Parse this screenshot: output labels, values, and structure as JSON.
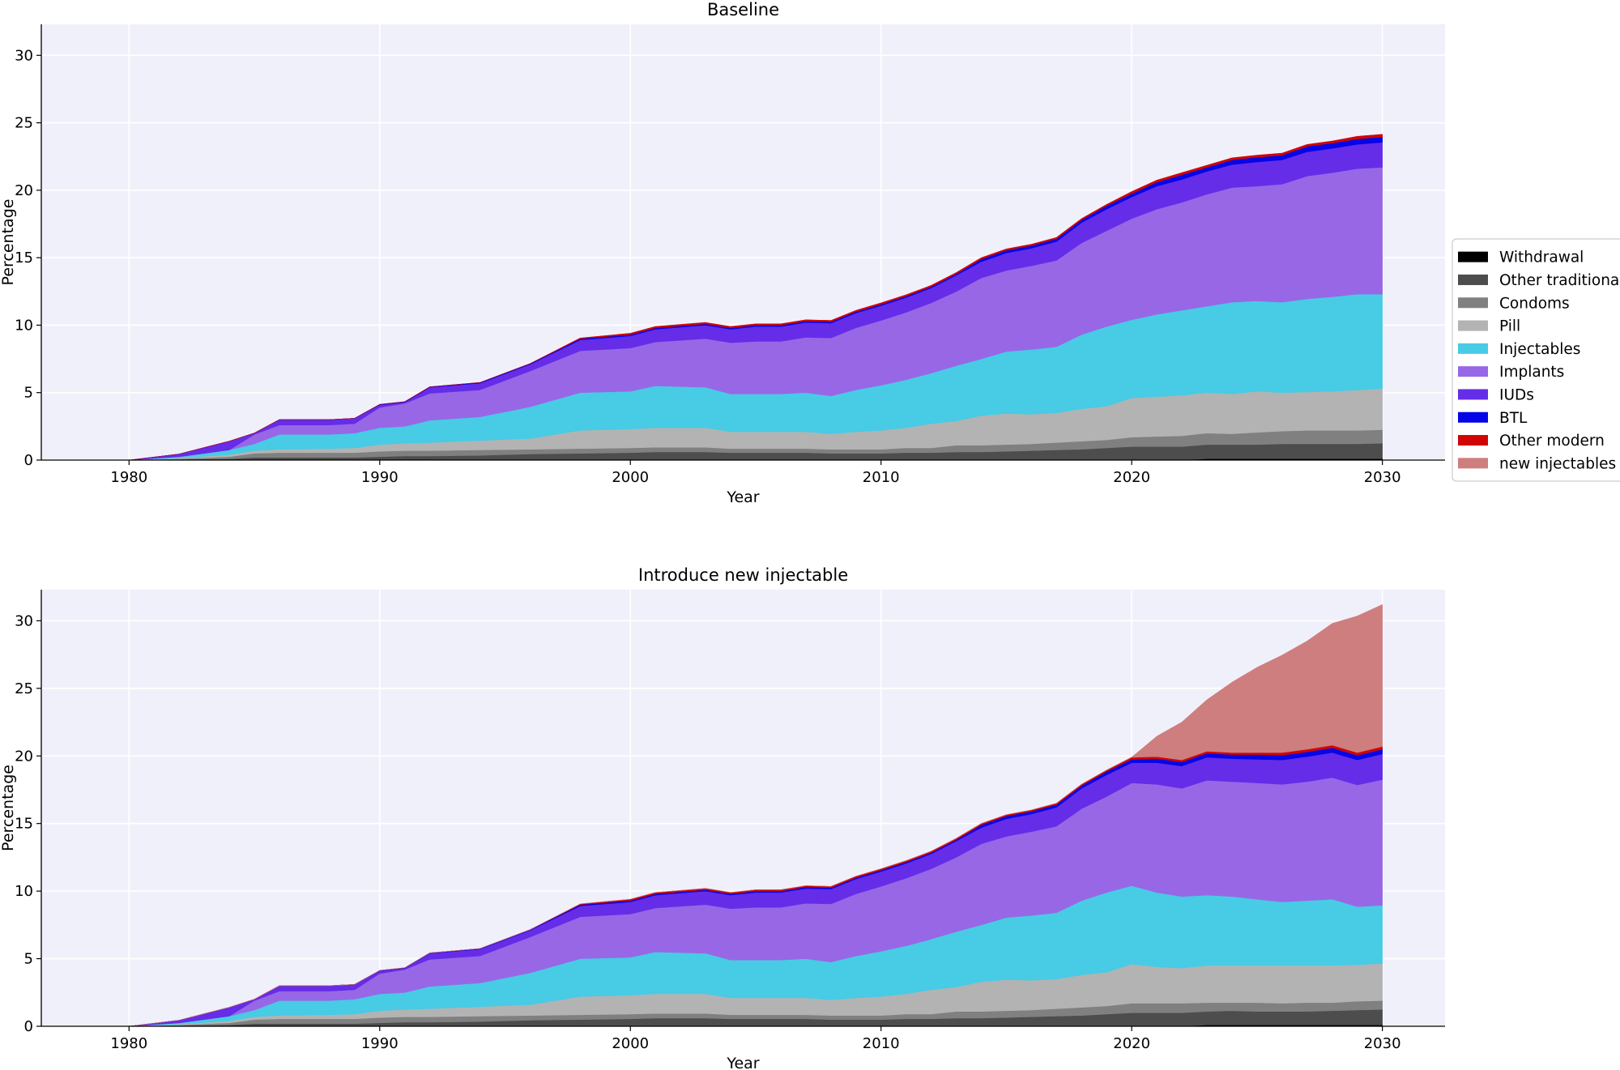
{
  "legend": {
    "entries": [
      {
        "label": "Withdrawal",
        "color": "#000000"
      },
      {
        "label": "Other traditional",
        "color": "#4d4d4d"
      },
      {
        "label": "Condoms",
        "color": "#808080"
      },
      {
        "label": "Pill",
        "color": "#b3b3b3"
      },
      {
        "label": "Injectables",
        "color": "#48cbe4"
      },
      {
        "label": "Implants",
        "color": "#9867e6"
      },
      {
        "label": "IUDs",
        "color": "#652de8"
      },
      {
        "label": "BTL",
        "color": "#0505e8"
      },
      {
        "label": "Other modern",
        "color": "#d10505"
      },
      {
        "label": "new injectables",
        "color": "#ce7e7e"
      }
    ]
  },
  "chart_data": [
    {
      "type": "area",
      "stacked": true,
      "title": "Baseline",
      "xlabel": "Year",
      "ylabel": "Percentage",
      "xlim": [
        1976.5,
        2032.5
      ],
      "ylim": [
        0,
        32.3
      ],
      "xticks": [
        "1980",
        "1990",
        "2000",
        "2010",
        "2020",
        "2030"
      ],
      "yticks": [
        "0",
        "5",
        "10",
        "15",
        "20",
        "25",
        "30"
      ],
      "grid": true,
      "x": [
        1980,
        1982,
        1984,
        1985,
        1986,
        1988,
        1989,
        1990,
        1991,
        1992,
        1994,
        1996,
        1998,
        2000,
        2001,
        2003,
        2004,
        2005,
        2006,
        2007,
        2008,
        2009,
        2010,
        2011,
        2012,
        2013,
        2014,
        2015,
        2016,
        2017,
        2018,
        2019,
        2020,
        2021,
        2022,
        2023,
        2024,
        2025,
        2026,
        2027,
        2028,
        2029,
        2030
      ],
      "series": [
        {
          "name": "Withdrawal",
          "values": [
            0,
            0,
            0,
            0,
            0,
            0,
            0,
            0,
            0,
            0,
            0,
            0,
            0,
            0,
            0,
            0,
            0,
            0,
            0,
            0,
            0,
            0,
            0,
            0,
            0,
            0,
            0,
            0,
            0,
            0,
            0,
            0,
            0,
            0,
            0,
            0.1,
            0.1,
            0.1,
            0.1,
            0.1,
            0.1,
            0.1,
            0.1
          ]
        },
        {
          "name": "Other traditional",
          "values": [
            0,
            0.05,
            0.1,
            0.2,
            0.2,
            0.2,
            0.2,
            0.25,
            0.3,
            0.3,
            0.35,
            0.45,
            0.5,
            0.55,
            0.6,
            0.6,
            0.55,
            0.55,
            0.55,
            0.55,
            0.5,
            0.5,
            0.5,
            0.55,
            0.55,
            0.6,
            0.6,
            0.65,
            0.7,
            0.75,
            0.8,
            0.9,
            1,
            1,
            1,
            1.05,
            1.05,
            1.05,
            1.1,
            1.1,
            1.1,
            1.1,
            1.15
          ]
        },
        {
          "name": "Condoms",
          "values": [
            0,
            0.05,
            0.15,
            0.3,
            0.35,
            0.35,
            0.35,
            0.4,
            0.4,
            0.4,
            0.4,
            0.35,
            0.35,
            0.35,
            0.35,
            0.35,
            0.3,
            0.3,
            0.3,
            0.3,
            0.3,
            0.3,
            0.3,
            0.35,
            0.35,
            0.5,
            0.5,
            0.5,
            0.5,
            0.55,
            0.6,
            0.6,
            0.7,
            0.75,
            0.8,
            0.85,
            0.8,
            0.9,
            0.95,
            1,
            1,
            1,
            1
          ]
        },
        {
          "name": "Pill",
          "values": [
            0,
            0.05,
            0.15,
            0.2,
            0.25,
            0.3,
            0.35,
            0.5,
            0.55,
            0.6,
            0.7,
            0.8,
            1.35,
            1.4,
            1.45,
            1.45,
            1.25,
            1.25,
            1.25,
            1.25,
            1.15,
            1.3,
            1.4,
            1.5,
            1.8,
            1.8,
            2.2,
            2.3,
            2.2,
            2.2,
            2.4,
            2.5,
            2.9,
            2.95,
            3,
            3,
            2.95,
            3.05,
            2.85,
            2.85,
            2.9,
            3,
            3.05
          ]
        },
        {
          "name": "Injectables",
          "values": [
            0,
            0.1,
            0.35,
            0.5,
            1.1,
            1.05,
            1.1,
            1.25,
            1.25,
            1.65,
            1.75,
            2.35,
            2.8,
            2.8,
            3.1,
            3,
            2.8,
            2.8,
            2.8,
            2.9,
            2.8,
            3.1,
            3.35,
            3.55,
            3.75,
            4.1,
            4.2,
            4.6,
            4.8,
            4.9,
            5.5,
            5.9,
            5.8,
            6.1,
            6.3,
            6.4,
            6.8,
            6.7,
            6.7,
            6.9,
            7,
            7.1,
            7
          ]
        },
        {
          "name": "Implants",
          "values": [
            0,
            0,
            0,
            0.7,
            0.7,
            0.7,
            0.7,
            1.5,
            1.7,
            2,
            2,
            2.65,
            3.1,
            3.2,
            3.25,
            3.6,
            3.8,
            3.9,
            3.9,
            4.1,
            4.3,
            4.6,
            4.8,
            5,
            5.2,
            5.5,
            6,
            6,
            6.2,
            6.4,
            6.8,
            7.1,
            7.5,
            7.8,
            8,
            8.3,
            8.5,
            8.5,
            8.75,
            9.1,
            9.2,
            9.3,
            9.4
          ]
        },
        {
          "name": "IUDs",
          "values": [
            0,
            0.2,
            0.65,
            0.1,
            0.4,
            0.4,
            0.4,
            0.2,
            0.1,
            0.45,
            0.5,
            0.5,
            0.8,
            0.9,
            0.95,
            1,
            1,
            1.1,
            1.1,
            1.1,
            1.1,
            1.1,
            1.1,
            1.1,
            1.1,
            1.2,
            1.2,
            1.3,
            1.3,
            1.4,
            1.5,
            1.6,
            1.6,
            1.7,
            1.7,
            1.7,
            1.7,
            1.8,
            1.8,
            1.8,
            1.8,
            1.8,
            1.85
          ]
        },
        {
          "name": "BTL",
          "values": [
            0,
            0,
            0,
            0,
            0,
            0,
            0,
            0.03,
            0.03,
            0.03,
            0.05,
            0.05,
            0.1,
            0.1,
            0.1,
            0.1,
            0.1,
            0.1,
            0.1,
            0.1,
            0.1,
            0.1,
            0.1,
            0.1,
            0.1,
            0.1,
            0.2,
            0.2,
            0.2,
            0.2,
            0.2,
            0.25,
            0.25,
            0.3,
            0.35,
            0.3,
            0.35,
            0.35,
            0.35,
            0.4,
            0.4,
            0.4,
            0.4
          ]
        },
        {
          "name": "Other modern",
          "values": [
            0,
            0,
            0,
            0,
            0,
            0,
            0,
            0,
            0,
            0,
            0,
            0,
            0.05,
            0.1,
            0.1,
            0.1,
            0.1,
            0.1,
            0.1,
            0.1,
            0.1,
            0.1,
            0.1,
            0.1,
            0.1,
            0.1,
            0.1,
            0.1,
            0.1,
            0.1,
            0.1,
            0.1,
            0.15,
            0.15,
            0.15,
            0.15,
            0.15,
            0.15,
            0.15,
            0.15,
            0.15,
            0.2,
            0.2
          ]
        }
      ]
    },
    {
      "type": "area",
      "stacked": true,
      "title": "Introduce new injectable",
      "xlabel": "Year",
      "ylabel": "Percentage",
      "xlim": [
        1976.5,
        2032.5
      ],
      "ylim": [
        0,
        32.3
      ],
      "xticks": [
        "1980",
        "1990",
        "2000",
        "2010",
        "2020",
        "2030"
      ],
      "yticks": [
        "0",
        "5",
        "10",
        "15",
        "20",
        "25",
        "30"
      ],
      "grid": true,
      "x": [
        1980,
        1982,
        1984,
        1985,
        1986,
        1988,
        1989,
        1990,
        1991,
        1992,
        1994,
        1996,
        1998,
        2000,
        2001,
        2003,
        2004,
        2005,
        2006,
        2007,
        2008,
        2009,
        2010,
        2011,
        2012,
        2013,
        2014,
        2015,
        2016,
        2017,
        2018,
        2019,
        2020,
        2021,
        2022,
        2023,
        2024,
        2025,
        2026,
        2027,
        2028,
        2029,
        2030
      ],
      "series": [
        {
          "name": "Withdrawal",
          "values": [
            0,
            0,
            0,
            0,
            0,
            0,
            0,
            0,
            0,
            0,
            0,
            0,
            0,
            0,
            0,
            0,
            0,
            0,
            0,
            0,
            0,
            0,
            0,
            0,
            0,
            0,
            0,
            0,
            0,
            0,
            0,
            0,
            0,
            0,
            0,
            0.1,
            0.1,
            0.1,
            0.1,
            0.1,
            0.1,
            0.1,
            0.1
          ]
        },
        {
          "name": "Other traditional",
          "values": [
            0,
            0.05,
            0.1,
            0.2,
            0.2,
            0.2,
            0.2,
            0.25,
            0.3,
            0.3,
            0.35,
            0.45,
            0.5,
            0.55,
            0.6,
            0.6,
            0.55,
            0.55,
            0.55,
            0.55,
            0.5,
            0.5,
            0.5,
            0.55,
            0.55,
            0.6,
            0.6,
            0.65,
            0.7,
            0.75,
            0.8,
            0.9,
            1,
            1,
            1,
            1,
            1.05,
            1,
            1,
            1,
            1.05,
            1.1,
            1.15
          ]
        },
        {
          "name": "Condoms",
          "values": [
            0,
            0.05,
            0.15,
            0.3,
            0.35,
            0.35,
            0.35,
            0.4,
            0.4,
            0.4,
            0.4,
            0.35,
            0.35,
            0.35,
            0.35,
            0.35,
            0.3,
            0.3,
            0.3,
            0.3,
            0.3,
            0.3,
            0.3,
            0.35,
            0.35,
            0.5,
            0.5,
            0.5,
            0.5,
            0.55,
            0.6,
            0.6,
            0.7,
            0.7,
            0.7,
            0.65,
            0.6,
            0.65,
            0.6,
            0.65,
            0.6,
            0.65,
            0.65
          ]
        },
        {
          "name": "Pill",
          "values": [
            0,
            0.05,
            0.15,
            0.2,
            0.25,
            0.3,
            0.35,
            0.5,
            0.55,
            0.6,
            0.7,
            0.8,
            1.35,
            1.4,
            1.45,
            1.45,
            1.25,
            1.25,
            1.25,
            1.25,
            1.15,
            1.3,
            1.4,
            1.5,
            1.8,
            1.8,
            2.2,
            2.3,
            2.2,
            2.2,
            2.4,
            2.5,
            2.9,
            2.7,
            2.6,
            2.75,
            2.75,
            2.75,
            2.8,
            2.75,
            2.75,
            2.7,
            2.75
          ]
        },
        {
          "name": "Injectables",
          "values": [
            0,
            0.1,
            0.35,
            0.5,
            1.1,
            1.05,
            1.1,
            1.25,
            1.25,
            1.65,
            1.75,
            2.35,
            2.8,
            2.8,
            3.1,
            3,
            2.8,
            2.8,
            2.8,
            2.9,
            2.8,
            3.1,
            3.35,
            3.55,
            3.75,
            4.1,
            4.2,
            4.6,
            4.8,
            4.9,
            5.5,
            5.9,
            5.8,
            5.5,
            5.3,
            5.2,
            5.1,
            4.9,
            4.7,
            4.8,
            4.9,
            4.3,
            4.3
          ]
        },
        {
          "name": "Implants",
          "values": [
            0,
            0,
            0,
            0.7,
            0.7,
            0.7,
            0.7,
            1.5,
            1.7,
            2,
            2,
            2.65,
            3.1,
            3.2,
            3.25,
            3.6,
            3.8,
            3.9,
            3.9,
            4.1,
            4.3,
            4.6,
            4.8,
            5,
            5.2,
            5.5,
            6,
            6,
            6.2,
            6.4,
            6.8,
            7.1,
            7.6,
            8,
            8,
            8.5,
            8.5,
            8.6,
            8.7,
            8.8,
            9,
            9,
            9.3
          ]
        },
        {
          "name": "IUDs",
          "values": [
            0,
            0.2,
            0.65,
            0.1,
            0.4,
            0.4,
            0.4,
            0.2,
            0.1,
            0.45,
            0.5,
            0.5,
            0.8,
            0.9,
            0.95,
            1,
            1,
            1.1,
            1.1,
            1.1,
            1.1,
            1.1,
            1.1,
            1.1,
            1.1,
            1.2,
            1.2,
            1.3,
            1.3,
            1.4,
            1.5,
            1.6,
            1.5,
            1.6,
            1.65,
            1.7,
            1.7,
            1.75,
            1.8,
            1.85,
            1.85,
            1.85,
            1.9
          ]
        },
        {
          "name": "BTL",
          "values": [
            0,
            0,
            0,
            0,
            0,
            0,
            0,
            0.03,
            0.03,
            0.03,
            0.05,
            0.05,
            0.1,
            0.1,
            0.1,
            0.1,
            0.1,
            0.1,
            0.1,
            0.1,
            0.1,
            0.1,
            0.1,
            0.1,
            0.1,
            0.1,
            0.2,
            0.2,
            0.2,
            0.2,
            0.2,
            0.25,
            0.25,
            0.3,
            0.3,
            0.3,
            0.3,
            0.35,
            0.35,
            0.35,
            0.35,
            0.35,
            0.35
          ]
        },
        {
          "name": "Other modern",
          "values": [
            0,
            0,
            0,
            0,
            0,
            0,
            0,
            0,
            0,
            0,
            0,
            0,
            0.05,
            0.1,
            0.1,
            0.1,
            0.1,
            0.1,
            0.1,
            0.1,
            0.1,
            0.1,
            0.1,
            0.1,
            0.1,
            0.1,
            0.1,
            0.1,
            0.1,
            0.1,
            0.1,
            0.1,
            0.15,
            0.15,
            0.15,
            0.15,
            0.15,
            0.15,
            0.2,
            0.2,
            0.2,
            0.2,
            0.2
          ]
        },
        {
          "name": "new injectables",
          "values": [
            0,
            0,
            0,
            0,
            0,
            0,
            0,
            0,
            0,
            0,
            0,
            0,
            0,
            0,
            0,
            0,
            0,
            0,
            0,
            0,
            0,
            0,
            0,
            0,
            0,
            0,
            0,
            0,
            0,
            0,
            0,
            0,
            0,
            1.5,
            2.8,
            3.8,
            5.2,
            6.3,
            7.2,
            8,
            9,
            10.1,
            10.5
          ]
        }
      ]
    }
  ]
}
